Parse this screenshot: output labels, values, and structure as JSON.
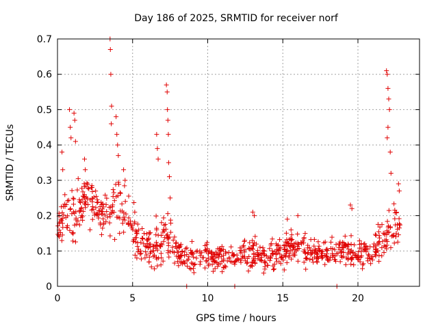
{
  "chart_data": {
    "type": "scatter",
    "title": "Day 186 of 2025, SRMTID for receiver norf",
    "xlabel": "GPS time / hours",
    "ylabel": "SRMTID / TECUs",
    "xlim": [
      0,
      24.1
    ],
    "ylim": [
      0,
      0.7
    ],
    "xticks": [
      "0",
      "5",
      "10",
      "15",
      "20"
    ],
    "xtick_values": [
      0,
      5,
      10,
      15,
      20
    ],
    "yticks": [
      "0",
      "0.1",
      "0.2",
      "0.3",
      "0.4",
      "0.5",
      "0.6",
      "0.7"
    ],
    "ytick_values": [
      0,
      0.1,
      0.2,
      0.3,
      0.4,
      0.5,
      0.6,
      0.7
    ],
    "grid": true,
    "marker": "+",
    "color": "#e00000",
    "envelope": [
      {
        "x": 0.0,
        "mean": 0.15,
        "spread": 0.05
      },
      {
        "x": 0.5,
        "mean": 0.2,
        "spread": 0.08
      },
      {
        "x": 1.0,
        "mean": 0.2,
        "spread": 0.08
      },
      {
        "x": 1.5,
        "mean": 0.22,
        "spread": 0.07
      },
      {
        "x": 2.0,
        "mean": 0.26,
        "spread": 0.07
      },
      {
        "x": 2.5,
        "mean": 0.22,
        "spread": 0.06
      },
      {
        "x": 3.0,
        "mean": 0.2,
        "spread": 0.06
      },
      {
        "x": 3.5,
        "mean": 0.18,
        "spread": 0.08
      },
      {
        "x": 4.0,
        "mean": 0.22,
        "spread": 0.09
      },
      {
        "x": 4.5,
        "mean": 0.22,
        "spread": 0.08
      },
      {
        "x": 5.0,
        "mean": 0.17,
        "spread": 0.07
      },
      {
        "x": 5.5,
        "mean": 0.12,
        "spread": 0.05
      },
      {
        "x": 6.0,
        "mean": 0.11,
        "spread": 0.05
      },
      {
        "x": 6.5,
        "mean": 0.12,
        "spread": 0.06
      },
      {
        "x": 7.0,
        "mean": 0.12,
        "spread": 0.07
      },
      {
        "x": 7.5,
        "mean": 0.13,
        "spread": 0.07
      },
      {
        "x": 8.0,
        "mean": 0.09,
        "spread": 0.03
      },
      {
        "x": 9.0,
        "mean": 0.08,
        "spread": 0.04
      },
      {
        "x": 10.0,
        "mean": 0.09,
        "spread": 0.04
      },
      {
        "x": 11.0,
        "mean": 0.08,
        "spread": 0.04
      },
      {
        "x": 12.0,
        "mean": 0.08,
        "spread": 0.04
      },
      {
        "x": 13.0,
        "mean": 0.1,
        "spread": 0.05
      },
      {
        "x": 14.0,
        "mean": 0.08,
        "spread": 0.04
      },
      {
        "x": 15.0,
        "mean": 0.1,
        "spread": 0.05
      },
      {
        "x": 16.0,
        "mean": 0.12,
        "spread": 0.05
      },
      {
        "x": 17.0,
        "mean": 0.09,
        "spread": 0.04
      },
      {
        "x": 18.0,
        "mean": 0.09,
        "spread": 0.04
      },
      {
        "x": 19.0,
        "mean": 0.1,
        "spread": 0.04
      },
      {
        "x": 20.0,
        "mean": 0.1,
        "spread": 0.04
      },
      {
        "x": 21.0,
        "mean": 0.1,
        "spread": 0.05
      },
      {
        "x": 22.0,
        "mean": 0.15,
        "spread": 0.07
      },
      {
        "x": 22.8,
        "mean": 0.19,
        "spread": 0.08
      }
    ],
    "spikes": [
      {
        "x": 0.3,
        "y": 0.38
      },
      {
        "x": 0.35,
        "y": 0.33
      },
      {
        "x": 0.8,
        "y": 0.5
      },
      {
        "x": 0.85,
        "y": 0.45
      },
      {
        "x": 0.9,
        "y": 0.42
      },
      {
        "x": 1.1,
        "y": 0.49
      },
      {
        "x": 1.15,
        "y": 0.47
      },
      {
        "x": 1.2,
        "y": 0.41
      },
      {
        "x": 1.8,
        "y": 0.36
      },
      {
        "x": 1.85,
        "y": 0.33
      },
      {
        "x": 3.5,
        "y": 0.7
      },
      {
        "x": 3.52,
        "y": 0.67
      },
      {
        "x": 3.55,
        "y": 0.6
      },
      {
        "x": 3.6,
        "y": 0.51
      },
      {
        "x": 3.58,
        "y": 0.46
      },
      {
        "x": 3.9,
        "y": 0.48
      },
      {
        "x": 3.95,
        "y": 0.43
      },
      {
        "x": 4.0,
        "y": 0.4
      },
      {
        "x": 4.05,
        "y": 0.37
      },
      {
        "x": 4.4,
        "y": 0.33
      },
      {
        "x": 4.5,
        "y": 0.3
      },
      {
        "x": 6.6,
        "y": 0.43
      },
      {
        "x": 6.65,
        "y": 0.39
      },
      {
        "x": 6.7,
        "y": 0.36
      },
      {
        "x": 7.25,
        "y": 0.57
      },
      {
        "x": 7.3,
        "y": 0.55
      },
      {
        "x": 7.32,
        "y": 0.5
      },
      {
        "x": 7.35,
        "y": 0.47
      },
      {
        "x": 7.38,
        "y": 0.43
      },
      {
        "x": 7.4,
        "y": 0.35
      },
      {
        "x": 7.45,
        "y": 0.31
      },
      {
        "x": 7.5,
        "y": 0.25
      },
      {
        "x": 13.0,
        "y": 0.21
      },
      {
        "x": 13.1,
        "y": 0.2
      },
      {
        "x": 15.3,
        "y": 0.19
      },
      {
        "x": 16.0,
        "y": 0.2
      },
      {
        "x": 19.5,
        "y": 0.23
      },
      {
        "x": 19.6,
        "y": 0.22
      },
      {
        "x": 21.9,
        "y": 0.61
      },
      {
        "x": 21.95,
        "y": 0.6
      },
      {
        "x": 22.0,
        "y": 0.56
      },
      {
        "x": 22.05,
        "y": 0.53
      },
      {
        "x": 22.1,
        "y": 0.5
      },
      {
        "x": 22.0,
        "y": 0.45
      },
      {
        "x": 21.95,
        "y": 0.42
      },
      {
        "x": 22.15,
        "y": 0.38
      },
      {
        "x": 22.2,
        "y": 0.32
      },
      {
        "x": 22.7,
        "y": 0.29
      },
      {
        "x": 22.75,
        "y": 0.27
      },
      {
        "x": 8.6,
        "y": 0.0
      },
      {
        "x": 11.8,
        "y": 0.0
      },
      {
        "x": 18.6,
        "y": 0.0
      }
    ],
    "point_count": 900
  }
}
